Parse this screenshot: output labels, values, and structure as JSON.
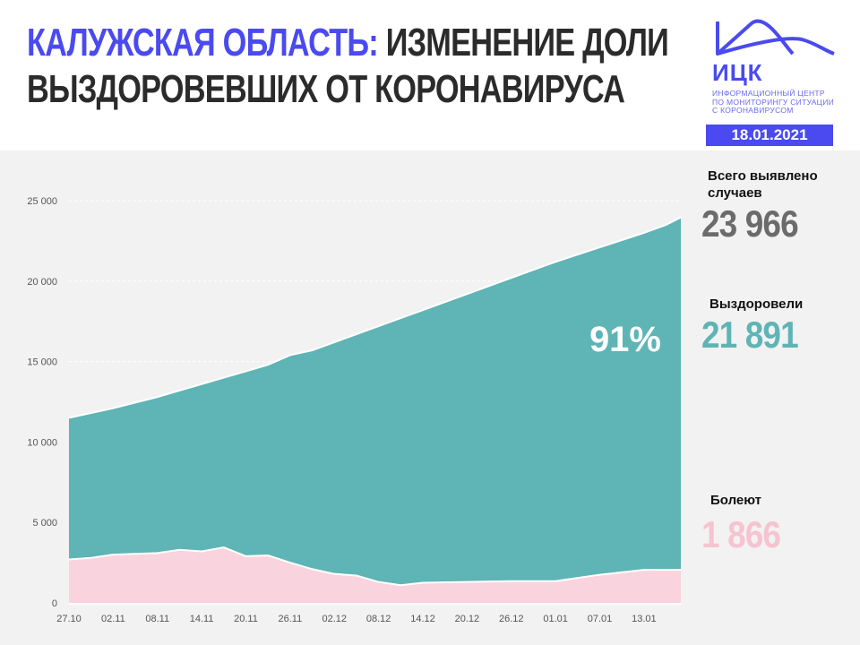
{
  "header": {
    "title_accent": "КАЛУЖСКАЯ ОБЛАСТЬ:",
    "title_rest_line1": "ИЗМЕНЕНИЕ ДОЛИ",
    "title_line2": "ВЫЗДОРОВЕВШИХ ОТ КОРОНАВИРУСА",
    "logo_abbr": "ИЦК",
    "logo_subtitle": [
      "ИНФОРМАЦИОННЫЙ ЦЕНТР",
      "ПО МОНИТОРИНГУ СИТУАЦИИ",
      "С КОРОНАВИРУСОМ"
    ],
    "date": "18.01.2021",
    "brand_color": "#4a4af0"
  },
  "stats": {
    "total_label": "Всего выявлено случаев",
    "total_value": "23 966",
    "recovered_label": "Выздоровели",
    "recovered_value": "21 891",
    "sick_label": "Болеют",
    "sick_value": "1 866"
  },
  "chart_data": {
    "type": "area",
    "stacked": true,
    "annotation": "91%",
    "ylim": [
      0,
      25000
    ],
    "yticks": [
      "0",
      "5 000",
      "10 000",
      "15 000",
      "20 000",
      "25 000"
    ],
    "ytick_values": [
      0,
      5000,
      10000,
      15000,
      20000,
      25000
    ],
    "xticks": [
      "27.10",
      "02.11",
      "08.11",
      "14.11",
      "20.11",
      "26.11",
      "02.12",
      "08.12",
      "14.12",
      "20.12",
      "26.12",
      "01.01",
      "07.01",
      "13.01"
    ],
    "grid": true,
    "x": [
      "27.10",
      "30.10",
      "02.11",
      "05.11",
      "08.11",
      "11.11",
      "14.11",
      "17.11",
      "20.11",
      "23.11",
      "26.11",
      "29.11",
      "02.12",
      "05.12",
      "08.12",
      "11.12",
      "14.12",
      "17.12",
      "20.12",
      "23.12",
      "26.12",
      "29.12",
      "01.01",
      "04.01",
      "07.01",
      "10.01",
      "13.01",
      "16.01",
      "18.01"
    ],
    "total": [
      11500,
      11800,
      12100,
      12450,
      12800,
      13200,
      13600,
      14000,
      14400,
      14800,
      15400,
      15700,
      16200,
      16700,
      17200,
      17700,
      18200,
      18700,
      19200,
      19700,
      20200,
      20700,
      21200,
      21650,
      22100,
      22550,
      23000,
      23500,
      23966
    ],
    "sick": [
      2700,
      2800,
      3000,
      3050,
      3100,
      3300,
      3200,
      3450,
      2900,
      2950,
      2500,
      2100,
      1800,
      1700,
      1300,
      1100,
      1250,
      1280,
      1300,
      1330,
      1350,
      1350,
      1350,
      1550,
      1750,
      1900,
      2050,
      2050,
      2050
    ],
    "colors": {
      "recovered": "#5fb4b5",
      "sick": "#f9d3dd",
      "total_text": "#6b6b6b"
    }
  }
}
